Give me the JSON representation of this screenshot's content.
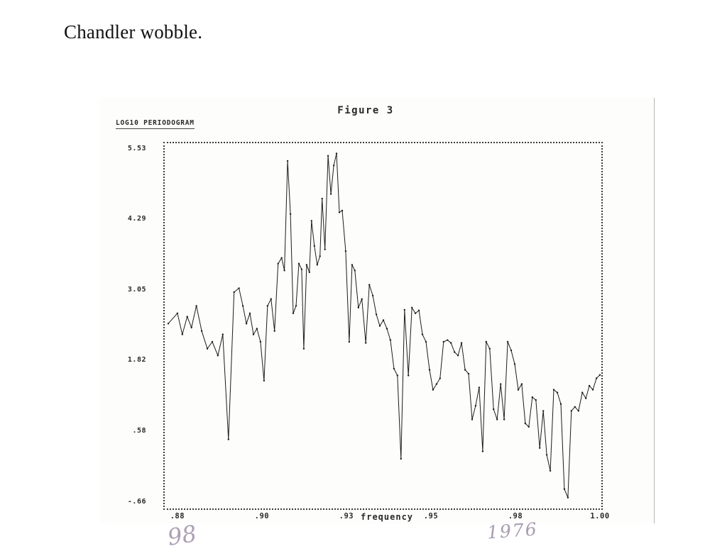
{
  "slide": {
    "title": "Chandler wobble."
  },
  "figure": {
    "heading": "Figure 3",
    "handwriting_left": "98",
    "handwriting_right": "1976"
  },
  "chart_data": {
    "type": "line",
    "title": "Figure 3",
    "ylabel": "LOG10 PERIODOGRAM",
    "xlabel": "frequency",
    "xlim": [
      0.876,
      1.0
    ],
    "ylim": [
      -0.75,
      5.65
    ],
    "grid": false,
    "legend": false,
    "yticks": {
      "values": [
        5.53,
        4.29,
        3.05,
        1.82,
        0.58,
        -0.66
      ],
      "labels": [
        "5.53",
        "4.29",
        "3.05",
        "1.82",
        ".58",
        "-.66"
      ]
    },
    "xticks": {
      "values": [
        0.88,
        0.904,
        0.928,
        0.952,
        0.976,
        1.0
      ],
      "labels": [
        ".88",
        ".90",
        ".93",
        ".95",
        ".98",
        "1.00"
      ]
    },
    "x": [
      0.877,
      0.8796,
      0.881,
      0.8824,
      0.8836,
      0.885,
      0.8865,
      0.8881,
      0.8895,
      0.8911,
      0.8925,
      0.8941,
      0.8957,
      0.8971,
      0.8982,
      0.8992,
      0.9002,
      0.9012,
      0.9022,
      0.9032,
      0.9042,
      0.9052,
      0.9062,
      0.9072,
      0.9082,
      0.9092,
      0.91,
      0.9109,
      0.9117,
      0.9125,
      0.9133,
      0.9141,
      0.9149,
      0.9155,
      0.9163,
      0.9171,
      0.9177,
      0.9185,
      0.9193,
      0.9201,
      0.9207,
      0.9215,
      0.9224,
      0.9232,
      0.924,
      0.9248,
      0.9256,
      0.9264,
      0.9274,
      0.9284,
      0.9292,
      0.93,
      0.931,
      0.932,
      0.9331,
      0.9341,
      0.9351,
      0.9361,
      0.9371,
      0.9381,
      0.9391,
      0.9401,
      0.9411,
      0.9421,
      0.9431,
      0.9441,
      0.9452,
      0.9462,
      0.9472,
      0.9482,
      0.9492,
      0.9502,
      0.9512,
      0.9522,
      0.9532,
      0.9542,
      0.9552,
      0.9563,
      0.9573,
      0.9583,
      0.9593,
      0.9603,
      0.9613,
      0.9623,
      0.9633,
      0.9643,
      0.9653,
      0.9663,
      0.9673,
      0.9683,
      0.9694,
      0.9704,
      0.9714,
      0.9724,
      0.9734,
      0.9744,
      0.9754,
      0.9764,
      0.9774,
      0.9784,
      0.9794,
      0.9804,
      0.9814,
      0.9825,
      0.9835,
      0.9845,
      0.9855,
      0.9865,
      0.9875,
      0.9885,
      0.9895,
      0.9905,
      0.9915,
      0.9925,
      0.9935,
      0.9946,
      0.9956,
      0.9966,
      0.9976,
      0.9986,
      0.9996
    ],
    "y": [
      2.49,
      2.67,
      2.3,
      2.61,
      2.42,
      2.8,
      2.36,
      2.05,
      2.17,
      1.93,
      2.3,
      0.46,
      3.04,
      3.11,
      2.8,
      2.49,
      2.67,
      2.3,
      2.4,
      2.17,
      1.49,
      2.8,
      2.92,
      2.36,
      3.54,
      3.64,
      3.42,
      5.34,
      4.41,
      2.67,
      2.8,
      3.54,
      3.44,
      2.05,
      3.52,
      3.39,
      4.29,
      3.85,
      3.52,
      3.67,
      4.68,
      3.79,
      5.43,
      4.76,
      5.26,
      5.47,
      4.44,
      4.47,
      3.76,
      2.17,
      3.52,
      3.42,
      2.77,
      2.92,
      2.15,
      3.17,
      2.98,
      2.65,
      2.45,
      2.55,
      2.4,
      2.2,
      1.7,
      1.58,
      0.12,
      2.73,
      1.58,
      2.77,
      2.67,
      2.72,
      2.3,
      2.17,
      1.68,
      1.33,
      1.43,
      1.53,
      2.17,
      2.2,
      2.15,
      1.99,
      1.93,
      2.15,
      1.68,
      1.61,
      0.81,
      1.05,
      1.37,
      0.25,
      2.17,
      2.05,
      0.99,
      0.81,
      1.43,
      0.81,
      2.17,
      2.02,
      1.78,
      1.33,
      1.43,
      0.74,
      0.68,
      1.2,
      1.15,
      0.31,
      0.96,
      0.19,
      -0.09,
      1.33,
      1.28,
      1.08,
      -0.41,
      -0.56,
      0.96,
      1.03,
      0.96,
      1.28,
      1.18,
      1.4,
      1.33,
      1.53,
      1.59
    ]
  }
}
